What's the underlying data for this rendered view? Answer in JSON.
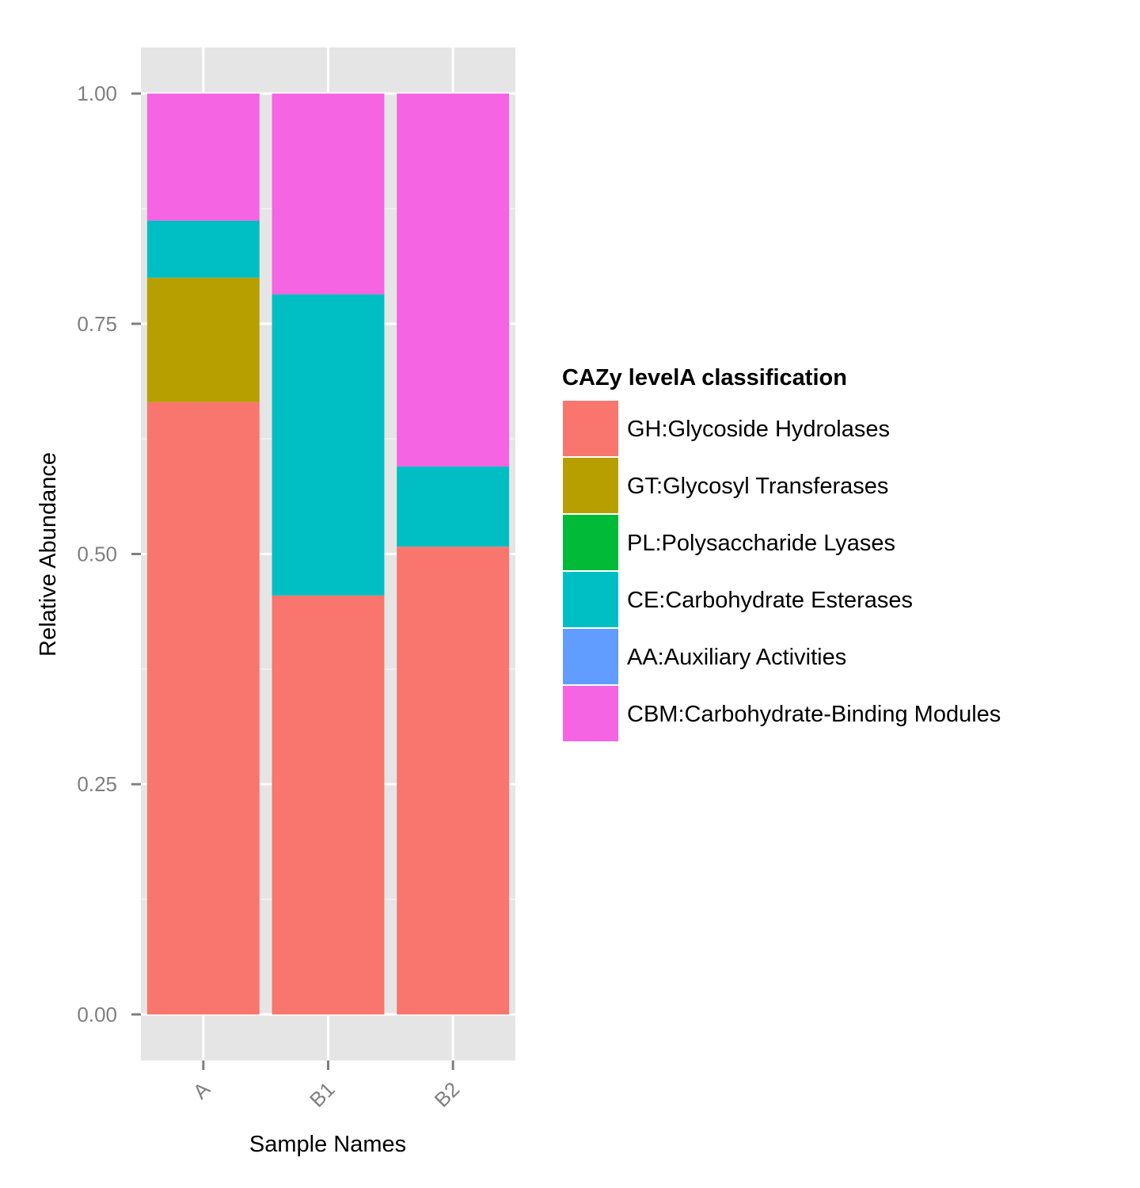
{
  "chart_data": {
    "type": "bar",
    "stacked": true,
    "categories": [
      "A",
      "B1",
      "B2"
    ],
    "xlabel": "Sample Names",
    "ylabel": "Relative Abundance",
    "ylim": [
      -0.05,
      1.05
    ],
    "yticks": [
      "0.00",
      "0.25",
      "0.50",
      "0.75",
      "1.00"
    ],
    "grid": true,
    "legend": {
      "title": "CAZy levelA classification",
      "placement": "right"
    },
    "series": [
      {
        "name": "GH:Glycoside Hydrolases",
        "color": "#F8766D",
        "values": [
          0.665,
          0.455,
          0.508
        ]
      },
      {
        "name": "GT:Glycosyl Transferases",
        "color": "#B79F00",
        "values": [
          0.135,
          0.0,
          0.0
        ]
      },
      {
        "name": "PL:Polysaccharide Lyases",
        "color": "#00BA38",
        "values": [
          0.0,
          0.0,
          0.0
        ]
      },
      {
        "name": "CE:Carbohydrate Esterases",
        "color": "#00BFC4",
        "values": [
          0.062,
          0.327,
          0.087
        ]
      },
      {
        "name": "AA:Auxiliary Activities",
        "color": "#619CFF",
        "values": [
          0.0,
          0.0,
          0.0
        ]
      },
      {
        "name": "CBM:Carbohydrate-Binding Modules",
        "color": "#F564E3",
        "values": [
          0.138,
          0.218,
          0.405
        ]
      }
    ]
  }
}
